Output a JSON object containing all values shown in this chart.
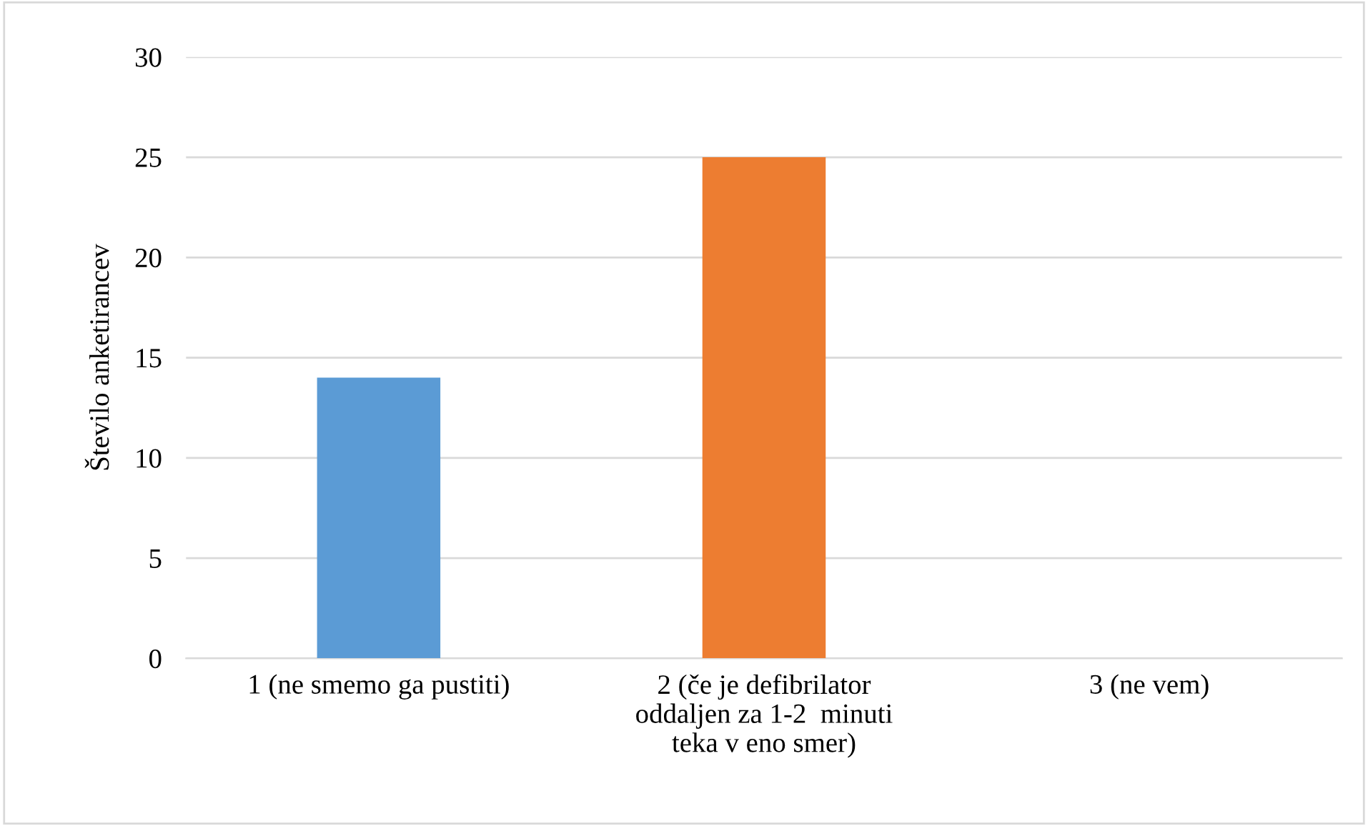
{
  "chart_data": {
    "type": "bar",
    "ylabel": "Število anketirancev",
    "categories": [
      "1 (ne smemo ga pustiti)",
      "2 (če je defibrilator\noddaljen za 1-2  minuti\nteka v eno smer)",
      "3 (ne vem)"
    ],
    "values": [
      14,
      25,
      0
    ],
    "colors": [
      "#5b9bd5",
      "#ed7d31",
      "#a5a5a5"
    ],
    "ylim": [
      0,
      30
    ],
    "yticks": [
      0,
      5,
      10,
      15,
      20,
      25,
      30
    ],
    "grid": "y"
  }
}
